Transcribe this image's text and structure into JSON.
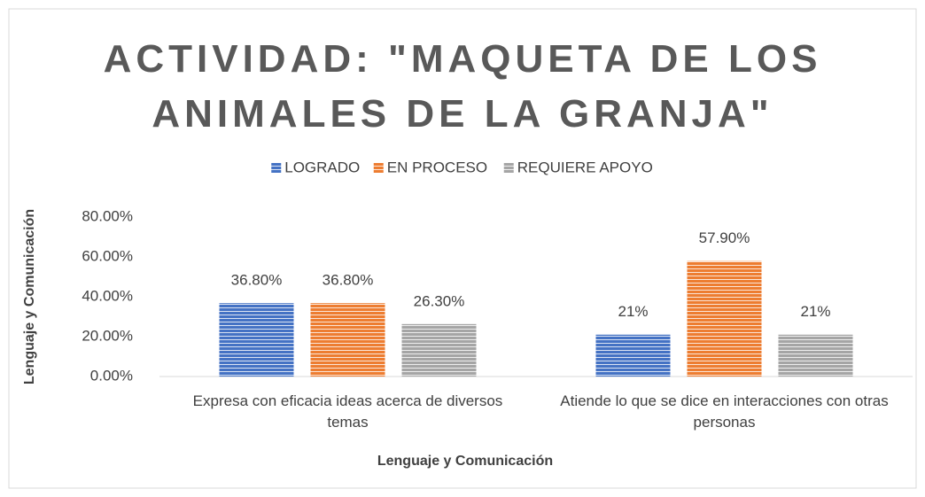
{
  "chart_data": {
    "type": "bar",
    "title": "ACTIVIDAD: \"MAQUETA DE LOS ANIMALES DE LA GRANJA\"",
    "categories": [
      "Expresa con eficacia ideas acerca de diversos temas",
      "Atiende lo que se dice en interacciones con otras personas"
    ],
    "series": [
      {
        "name": "LOGRADO",
        "color": "#4472c4",
        "values": [
          36.8,
          21
        ],
        "value_labels": [
          "36.80%",
          "21%"
        ]
      },
      {
        "name": "EN PROCESO",
        "color": "#ed7d31",
        "values": [
          36.8,
          57.9
        ],
        "value_labels": [
          "36.80%",
          "57.90%"
        ]
      },
      {
        "name": "REQUIERE APOYO",
        "color": "#a5a5a5",
        "values": [
          26.3,
          21
        ],
        "value_labels": [
          "26.30%",
          "21%"
        ]
      }
    ],
    "x_label": "Lenguaje y Comunicación",
    "y_label": "Lenguaje y Comunicación",
    "ylim": [
      0,
      80
    ],
    "yticks": [
      {
        "value": 0,
        "label": "0.00%"
      },
      {
        "value": 20,
        "label": "20.00%"
      },
      {
        "value": 40,
        "label": "40.00%"
      },
      {
        "value": 60,
        "label": "60.00%"
      },
      {
        "value": 80,
        "label": "80.00%"
      }
    ],
    "legend": "top"
  }
}
